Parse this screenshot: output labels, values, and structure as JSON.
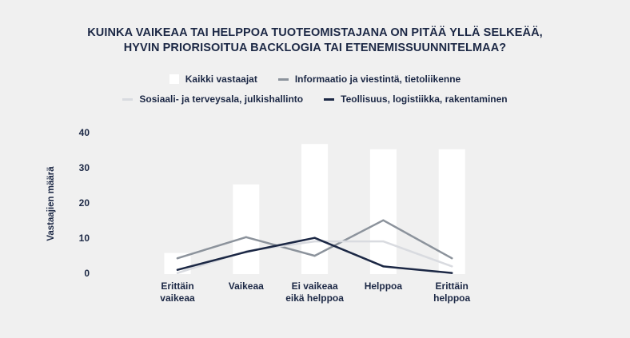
{
  "chart_data": {
    "type": "bar",
    "title_line1": "KUINKA VAIKEAA TAI HELPPOA TUOTEOMISTAJANA ON PITÄÄ YLLÄ SELKEÄÄ,",
    "title_line2": "HYVIN PRIORISOITUA BACKLOGIA TAI ETENEMISSUUNNITELMAA?",
    "ylabel": "Vastaajien määrä",
    "ylim": [
      0,
      40
    ],
    "yticks": [
      "0",
      "10",
      "20",
      "30",
      "40"
    ],
    "categories": [
      "Erittäin\nvaikeaa",
      "Vaikeaa",
      "Ei vaikeaa\neikä helppoa",
      "Helppoa",
      "Erittäin\nhelppoa"
    ],
    "grid": false,
    "legend_position": "top",
    "series": [
      {
        "name": "Kaikki vastaajat",
        "kind": "bar",
        "color": "#ffffff",
        "values": [
          6,
          25.5,
          37,
          35.5,
          35.5
        ]
      },
      {
        "name": "Informaatio ja viestintä, tietoliikenne",
        "kind": "line",
        "color": "#8c939c",
        "values": [
          4.5,
          10.5,
          5.2,
          15.3,
          4.5
        ]
      },
      {
        "name": "Sosiaali- ja terveysala, julkishallinto",
        "kind": "line",
        "color": "#d9dbe0",
        "values": [
          0.3,
          6.5,
          9.3,
          9.3,
          2.2
        ]
      },
      {
        "name": "Teollisuus, logistiikka, rakentaminen",
        "kind": "line",
        "color": "#1c2845",
        "values": [
          1.2,
          6.3,
          10.3,
          2.2,
          0.3
        ]
      }
    ]
  }
}
